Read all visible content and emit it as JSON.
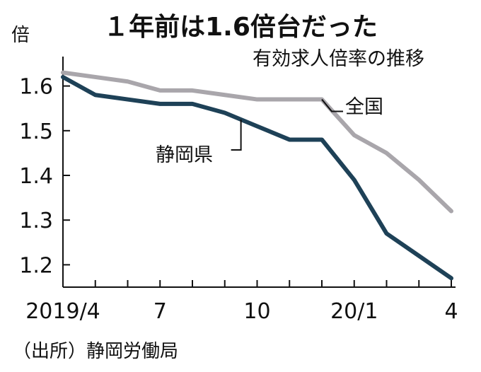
{
  "chart_data": {
    "type": "line",
    "title": "１年前は1.6倍台だった",
    "subtitle": "有効求人倍率の推移",
    "ylabel": "倍",
    "ylim": [
      1.15,
      1.65
    ],
    "y_ticks": [
      1.2,
      1.3,
      1.4,
      1.5,
      1.6
    ],
    "y_tick_labels": [
      "1.2",
      "1.3",
      "1.4",
      "1.5",
      "1.6"
    ],
    "x": [
      "2019/4",
      "2019/5",
      "2019/6",
      "2019/7",
      "2019/8",
      "2019/9",
      "2019/10",
      "2019/11",
      "2019/12",
      "2020/1",
      "2020/2",
      "2020/3",
      "2020/4"
    ],
    "x_tick_labels": [
      "2019/4",
      "",
      "",
      "7",
      "",
      "",
      "10",
      "",
      "",
      "20/1",
      "",
      "",
      "4"
    ],
    "series": [
      {
        "name": "全国",
        "color": "#a9a6ab",
        "values": [
          1.63,
          1.62,
          1.61,
          1.59,
          1.59,
          1.58,
          1.57,
          1.57,
          1.57,
          1.49,
          1.45,
          1.39,
          1.32
        ]
      },
      {
        "name": "静岡県",
        "color": "#1e4157",
        "values": [
          1.62,
          1.58,
          1.57,
          1.56,
          1.56,
          1.54,
          1.51,
          1.48,
          1.48,
          1.39,
          1.27,
          1.22,
          1.17
        ]
      }
    ],
    "grid": false,
    "source": "（出所）静岡労働局"
  }
}
